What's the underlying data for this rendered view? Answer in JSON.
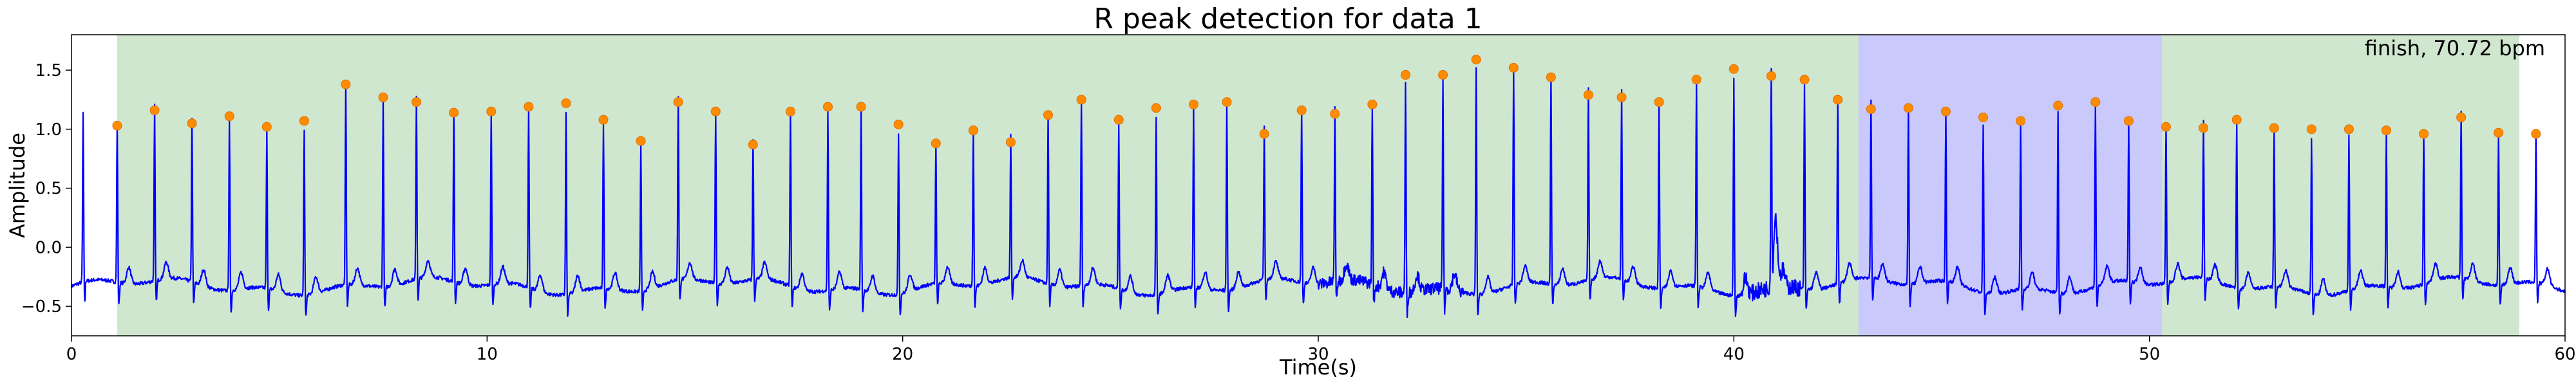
{
  "chart_data": {
    "type": "line",
    "title": "R peak detection for data 1",
    "xlabel": "Time(s)",
    "ylabel": "Amplitude",
    "xlim": [
      0,
      60
    ],
    "ylim": [
      -0.75,
      1.8
    ],
    "xticks": [
      0,
      10,
      20,
      30,
      40,
      50,
      60
    ],
    "yticks": [
      -0.5,
      0.0,
      0.5,
      1.0,
      1.5
    ],
    "ytick_labels": [
      "−0.5",
      "0.0",
      "0.5",
      "1.0",
      "1.5"
    ],
    "annotation": "finish, 70.72 bpm",
    "grid": false,
    "colors": {
      "signal": "#0000ff",
      "peak": "#ff8c00",
      "green_region": "#cfe6cf",
      "blue_region": "#c9c9fb"
    },
    "regions": [
      {
        "start": 1.1,
        "end": 43.0,
        "color": "green"
      },
      {
        "start": 43.0,
        "end": 50.3,
        "color": "blue"
      },
      {
        "start": 50.3,
        "end": 58.9,
        "color": "green"
      }
    ],
    "series": [
      {
        "type": "scatter",
        "x": [
          1.1,
          2.0,
          2.9,
          3.8,
          4.7,
          5.6,
          6.6,
          7.5,
          8.3,
          9.2,
          10.1,
          11.0,
          11.9,
          12.8,
          13.7,
          14.6,
          15.5,
          16.4,
          17.3,
          18.2,
          19.0,
          19.9,
          20.8,
          21.7,
          22.6,
          23.5,
          24.3,
          25.2,
          26.1,
          27.0,
          27.8,
          28.7,
          29.6,
          30.4,
          31.3,
          32.1,
          33.0,
          33.8,
          34.7,
          35.6,
          36.5,
          37.3,
          38.2,
          39.1,
          40.0,
          40.9,
          41.7,
          42.5,
          43.3,
          44.2,
          45.1,
          46.0,
          46.9,
          47.8,
          48.7,
          49.5,
          50.4,
          51.3,
          52.1,
          53.0,
          53.9,
          54.8,
          55.7,
          56.6,
          57.5,
          58.4,
          59.3
        ],
        "values": [
          1.03,
          1.16,
          1.05,
          1.11,
          1.02,
          1.07,
          1.38,
          1.27,
          1.23,
          1.14,
          1.15,
          1.19,
          1.22,
          1.08,
          0.9,
          1.23,
          1.15,
          0.87,
          1.15,
          1.19,
          1.19,
          1.04,
          0.88,
          0.99,
          0.89,
          1.12,
          1.25,
          1.08,
          1.18,
          1.21,
          1.23,
          0.96,
          1.16,
          1.13,
          1.21,
          1.46,
          1.46,
          1.59,
          1.52,
          1.44,
          1.29,
          1.27,
          1.23,
          1.42,
          1.51,
          1.45,
          1.42,
          1.25,
          1.17,
          1.18,
          1.15,
          1.1,
          1.07,
          1.2,
          1.23,
          1.07,
          1.02,
          1.01,
          1.08,
          1.01,
          1.0,
          1.0,
          0.99,
          0.96,
          1.1,
          0.97,
          0.96
        ]
      }
    ]
  }
}
